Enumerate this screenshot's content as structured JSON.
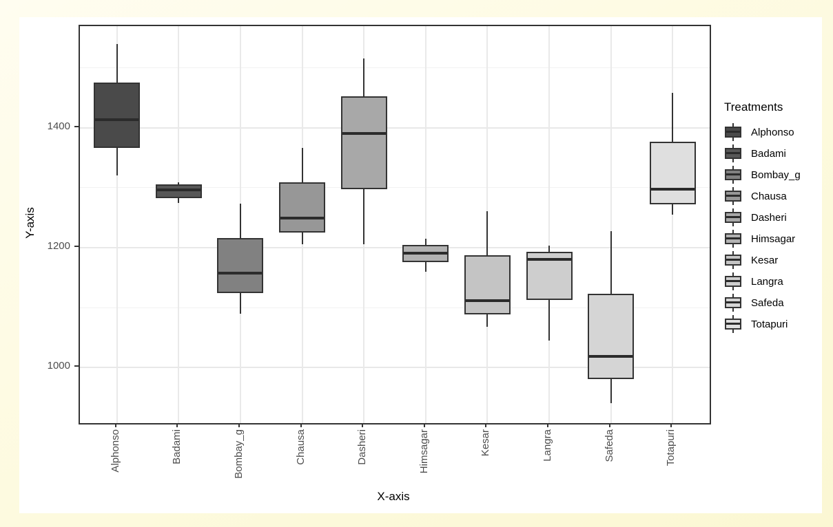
{
  "colors": {
    "outer_background": "#fdfade",
    "plot_background": "#ffffff",
    "panel_border": "#333333",
    "grid_major": "#e8e8e8",
    "grid_minor": "#f2f2f2",
    "box_border": "#333333",
    "median_line": "#2b2b2b",
    "tick_label_text": "#4d4d4d",
    "axis_title_text": "#000000",
    "legend_text": "#000000"
  },
  "legend": {
    "title": "Treatments",
    "key_glyph": "boxplot-icon"
  },
  "chart_data": {
    "type": "boxplot",
    "title": "",
    "xlabel": "X-axis",
    "ylabel": "Y-axis",
    "legend_title": "Treatments",
    "legend_position": "right",
    "ylim": [
      907,
      1570
    ],
    "y_major_ticks": [
      1000,
      1200,
      1400
    ],
    "y_minor_gridlines": [
      1100,
      1300,
      1500
    ],
    "grid": "horizontal major+minor, vertical major at each category",
    "categories": [
      "Alphonso",
      "Badami",
      "Bombay_g",
      "Chausa",
      "Dasheri",
      "Himsagar",
      "Kesar",
      "Langra",
      "Safeda",
      "Totapuri"
    ],
    "series": [
      {
        "name": "Alphonso",
        "fill": "#4a4a4a",
        "whisker_low": 1321,
        "q1": 1367,
        "median": 1414,
        "q3": 1476,
        "whisker_high": 1540
      },
      {
        "name": "Badami",
        "fill": "#575757",
        "whisker_low": 1275,
        "q1": 1283,
        "median": 1296,
        "q3": 1306,
        "whisker_high": 1309
      },
      {
        "name": "Bombay_g",
        "fill": "#818181",
        "whisker_low": 1090,
        "q1": 1124,
        "median": 1157,
        "q3": 1216,
        "whisker_high": 1274
      },
      {
        "name": "Chausa",
        "fill": "#979797",
        "whisker_low": 1206,
        "q1": 1225,
        "median": 1249,
        "q3": 1309,
        "whisker_high": 1367
      },
      {
        "name": "Dasheri",
        "fill": "#a8a8a8",
        "whisker_low": 1206,
        "q1": 1298,
        "median": 1391,
        "q3": 1453,
        "whisker_high": 1516
      },
      {
        "name": "Himsagar",
        "fill": "#b2b2b2",
        "whisker_low": 1160,
        "q1": 1176,
        "median": 1191,
        "q3": 1205,
        "whisker_high": 1215
      },
      {
        "name": "Kesar",
        "fill": "#c4c4c4",
        "whisker_low": 1068,
        "q1": 1088,
        "median": 1111,
        "q3": 1187,
        "whisker_high": 1261
      },
      {
        "name": "Langra",
        "fill": "#cecece",
        "whisker_low": 1045,
        "q1": 1113,
        "median": 1181,
        "q3": 1193,
        "whisker_high": 1203
      },
      {
        "name": "Safeda",
        "fill": "#d5d5d5",
        "whisker_low": 940,
        "q1": 980,
        "median": 1018,
        "q3": 1123,
        "whisker_high": 1228
      },
      {
        "name": "Totapuri",
        "fill": "#dfdfdf",
        "whisker_low": 1255,
        "q1": 1272,
        "median": 1298,
        "q3": 1377,
        "whisker_high": 1459
      }
    ]
  }
}
